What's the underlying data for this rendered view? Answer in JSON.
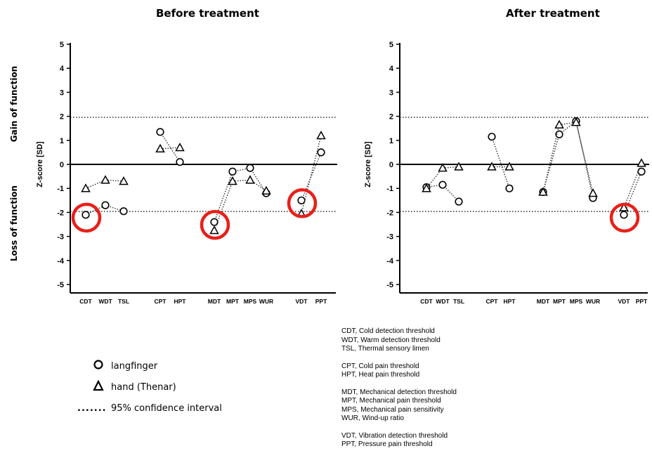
{
  "page": {
    "side_label_top": "Gain of function",
    "side_label_bottom": "Loss of function"
  },
  "chart_data": [
    {
      "type": "scatter",
      "title": "Before treatment",
      "ylabel": "Z-score [SD]",
      "xlabel": "",
      "ylim": [
        -5,
        5
      ],
      "yticks": [
        5,
        4,
        3,
        2,
        1,
        0,
        -1,
        -2,
        -3,
        -4,
        -5
      ],
      "reference_lines": [
        {
          "y": 0,
          "style": "solid"
        },
        {
          "y": 1.96,
          "style": "dotted"
        },
        {
          "y": -1.96,
          "style": "dotted"
        }
      ],
      "groups": [
        {
          "categories": [
            "CDT",
            "WDT",
            "TSL"
          ],
          "langfinger": [
            -2.1,
            -1.7,
            -1.95
          ],
          "hand": [
            -1.0,
            -0.65,
            -0.7
          ]
        },
        {
          "categories": [
            "CPT",
            "HPT"
          ],
          "langfinger": [
            1.35,
            0.1
          ],
          "hand": [
            0.65,
            0.7
          ]
        },
        {
          "categories": [
            "MDT",
            "MPT",
            "MPS",
            "WUR"
          ],
          "langfinger": [
            -2.4,
            -0.3,
            -0.15,
            -1.2
          ],
          "hand": [
            -2.75,
            -0.7,
            -0.65,
            -1.1
          ]
        },
        {
          "categories": [
            "VDT",
            "PPT"
          ],
          "langfinger": [
            -1.5,
            0.5
          ],
          "hand": [
            -2.05,
            1.2
          ]
        }
      ],
      "highlighted": [
        {
          "category": "CDT",
          "series": "langfinger"
        },
        {
          "category": "MDT",
          "series": "langfinger"
        },
        {
          "category": "VDT",
          "series": "langfinger"
        }
      ]
    },
    {
      "type": "scatter",
      "title": "After treatment",
      "ylabel": "Z-score [SD]",
      "xlabel": "",
      "ylim": [
        -5,
        5
      ],
      "yticks": [
        5,
        4,
        3,
        2,
        1,
        0,
        -1,
        -2,
        -3,
        -4,
        -5
      ],
      "reference_lines": [
        {
          "y": 0,
          "style": "solid"
        },
        {
          "y": 1.96,
          "style": "dotted"
        },
        {
          "y": -1.96,
          "style": "dotted"
        }
      ],
      "groups": [
        {
          "categories": [
            "CDT",
            "WDT",
            "TSL"
          ],
          "langfinger": [
            -0.95,
            -0.85,
            -1.55
          ],
          "hand": [
            -1.0,
            -0.15,
            -0.1
          ]
        },
        {
          "categories": [
            "CPT",
            "HPT"
          ],
          "langfinger": [
            1.15,
            -1.0
          ],
          "hand": [
            -0.1,
            -0.1
          ]
        },
        {
          "categories": [
            "MDT",
            "MPT",
            "MPS",
            "WUR"
          ],
          "langfinger": [
            -1.15,
            1.25,
            1.8,
            -1.4
          ],
          "hand": [
            -1.15,
            1.65,
            1.75,
            -1.2
          ]
        },
        {
          "categories": [
            "VDT",
            "PPT"
          ],
          "langfinger": [
            -2.1,
            -0.3
          ],
          "hand": [
            -1.8,
            0.05
          ]
        }
      ],
      "highlighted": [
        {
          "category": "VDT",
          "series": "langfinger"
        }
      ]
    }
  ],
  "legend": {
    "langfinger": "langfinger",
    "hand": "hand (Thenar)",
    "ci": "95% confidence interval"
  },
  "abbreviations": [
    [
      "CDT, Cold detection threshold",
      "WDT, Warm detection threshold",
      "TSL, Thermal sensory limen"
    ],
    [
      "CPT, Cold pain threshold",
      "HPT, Heat pain threshold"
    ],
    [
      "MDT, Mechanical detection threshold",
      "MPT, Mechanical pain threshold",
      "MPS, Mechanical pain sensitivity",
      "WUR, Wind-up ratio"
    ],
    [
      "VDT, Vibration detection threshold",
      "PPT, Pressure pain threshold"
    ]
  ],
  "colors": {
    "highlight": "#e8201a",
    "axis": "#000000"
  }
}
